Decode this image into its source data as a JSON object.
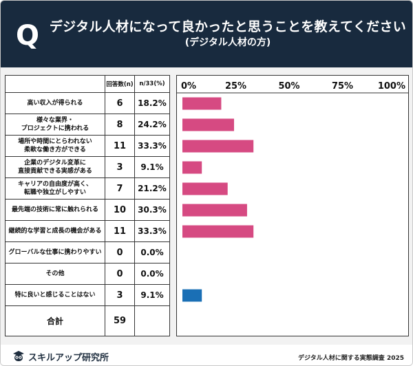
{
  "header": {
    "q_letter": "Q",
    "title": "デジタル人材になって良かったと思うことを教えてください",
    "subtitle": "(デジタル人材の方)"
  },
  "table": {
    "col_count_header": "回答数(n)",
    "col_pct_header": "n/33(%)",
    "total_label": "合計",
    "total_value": "59"
  },
  "chart_data": {
    "type": "bar",
    "orientation": "horizontal",
    "x_tick_labels": [
      "0%",
      "25%",
      "50%",
      "75%",
      "100%"
    ],
    "xlim": [
      0,
      100
    ],
    "categories": [
      "高い収入が得られる",
      "様々な業界・\nプロジェクトに携われる",
      "場所や時間にとらわれない\n柔軟な働き方ができる",
      "企業のデジタル変革に\n直接貢献できる実感がある",
      "キャリアの自由度が高く、\n転職や独立がしやすい",
      "最先端の技術に常に触れられる",
      "継続的な学習と成長の機会がある",
      "グローバルな仕事に携わりやすい",
      "その他",
      "特に良いと感じることはない"
    ],
    "counts": [
      "6",
      "8",
      "11",
      "3",
      "7",
      "10",
      "11",
      "0",
      "0",
      "3"
    ],
    "percent_labels": [
      "18.2%",
      "24.2%",
      "33.3%",
      "9.1%",
      "21.2%",
      "30.3%",
      "33.3%",
      "0.0%",
      "0.0%",
      "9.1%"
    ],
    "values": [
      18.2,
      24.2,
      33.3,
      9.1,
      21.2,
      30.3,
      33.3,
      0.0,
      0.0,
      9.1
    ],
    "bar_colors": [
      "#d64a82",
      "#d64a82",
      "#d64a82",
      "#d64a82",
      "#d64a82",
      "#d64a82",
      "#d64a82",
      "#d64a82",
      "#d64a82",
      "#1a6fb5"
    ]
  },
  "footer": {
    "brand": "スキルアップ研究所",
    "source": "デジタル人材に関する実態調査 2025"
  }
}
